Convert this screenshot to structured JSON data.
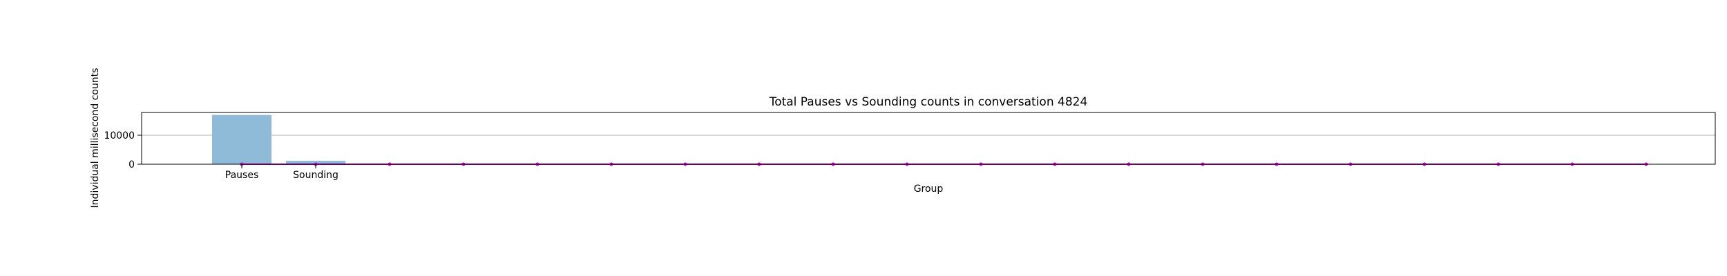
{
  "chart_data": {
    "type": "bar",
    "title": "Total Pauses vs Sounding counts in conversation 4824",
    "xlabel": "Group",
    "ylabel": "Individual millisecond counts",
    "categories": [
      "Pauses",
      "Sounding"
    ],
    "values": [
      17000,
      1200
    ],
    "ylim": [
      0,
      17850
    ],
    "yticks": [
      0,
      10000
    ],
    "grid": "horizontal",
    "bar_color": "#8fbbd9",
    "line_overlay": {
      "color": "#cc00cc",
      "marker_count": 20,
      "value": 0
    }
  }
}
